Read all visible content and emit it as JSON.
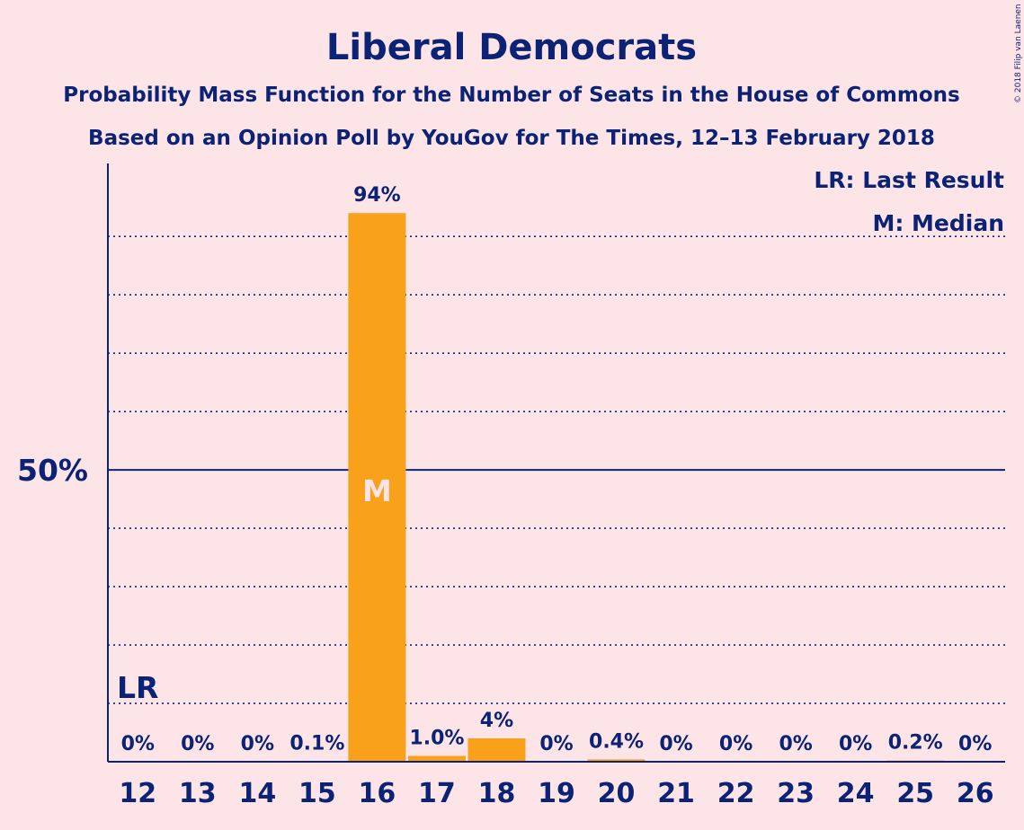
{
  "chart_data": {
    "type": "bar",
    "title": "Liberal Democrats",
    "subtitle_1": "Probability Mass Function for the Number of Seats in the House of Commons",
    "subtitle_2": "Based on an Opinion Poll by YouGov for The Times, 12–13 February 2018",
    "copyright": "© 2018 Filip van Laenen",
    "legend": [
      "LR: Last Result",
      "M: Median"
    ],
    "legend_position": "top-right",
    "categories": [
      "12",
      "13",
      "14",
      "15",
      "16",
      "17",
      "18",
      "19",
      "20",
      "21",
      "22",
      "23",
      "24",
      "25",
      "26"
    ],
    "values": [
      0,
      0,
      0,
      0.1,
      94,
      1.0,
      4,
      0,
      0.4,
      0,
      0,
      0,
      0,
      0.2,
      0
    ],
    "labels": [
      "0%",
      "0%",
      "0%",
      "0.1%",
      "94%",
      "1.0%",
      "4%",
      "0%",
      "0.4%",
      "0%",
      "0%",
      "0%",
      "0%",
      "0.2%",
      "0%"
    ],
    "ylim": [
      0,
      102.5
    ],
    "y_tick": {
      "value": 50,
      "label": "50%"
    },
    "grid_lines": [
      10,
      20,
      30,
      40,
      60,
      70,
      80,
      90
    ],
    "last_result": {
      "category": "12",
      "label": "LR",
      "level": 10
    },
    "median": {
      "category": "16",
      "label": "M"
    },
    "colors": {
      "bar": "#f9a11b",
      "text": "#0b2275",
      "background": "#fde4e7"
    }
  }
}
